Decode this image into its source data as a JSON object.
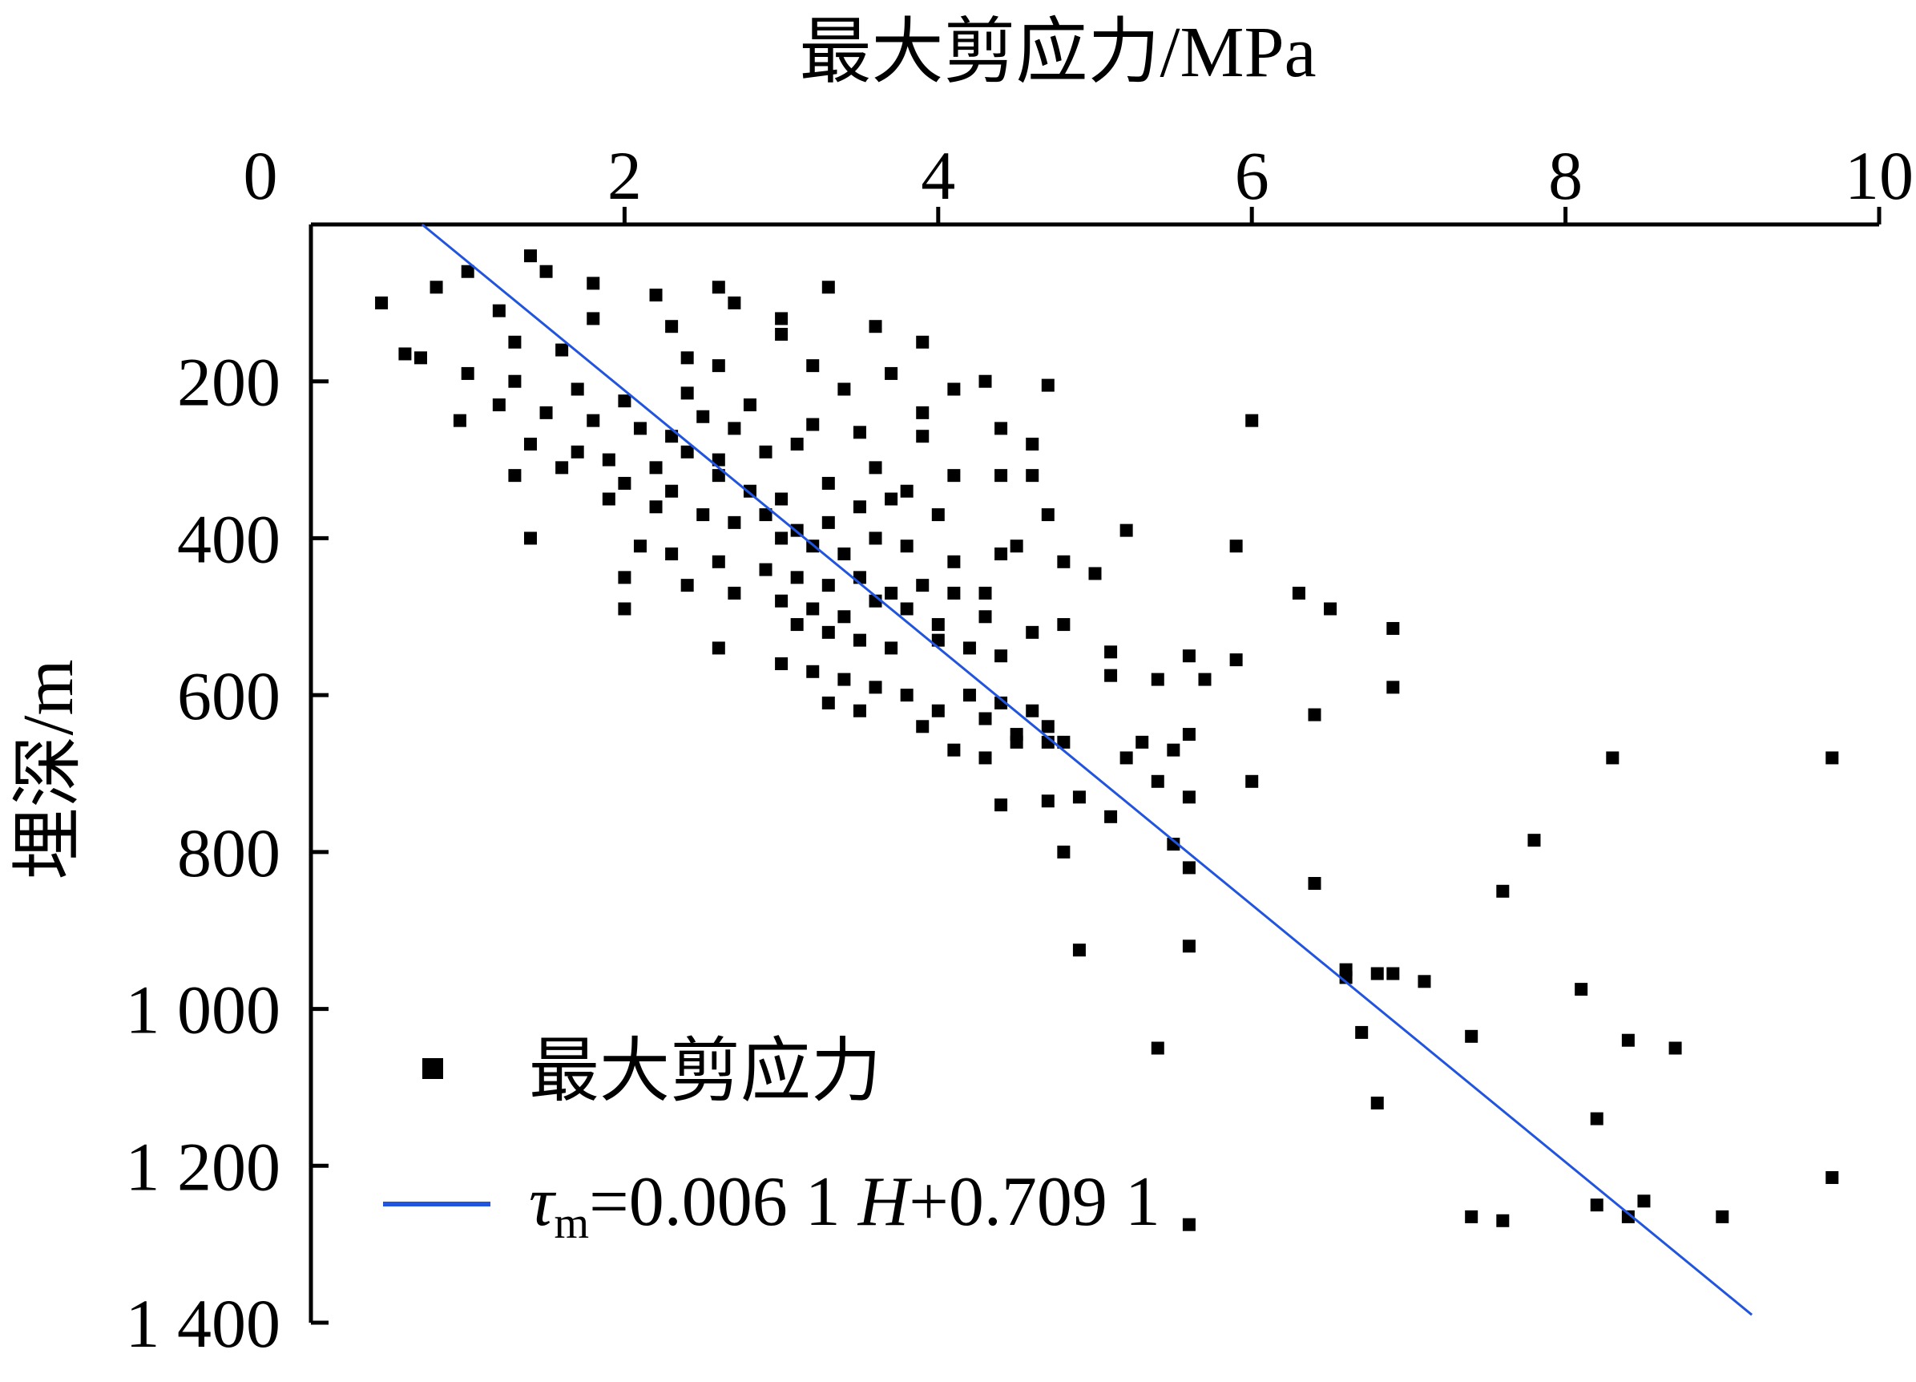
{
  "chart_data": {
    "type": "scatter",
    "title": "",
    "xlabel": "最大剪应力/MPa",
    "ylabel": "埋深/m",
    "xlim": [
      0,
      10
    ],
    "ylim": [
      0,
      1400
    ],
    "y_inverted": true,
    "x_axis_position": "top",
    "grid": false,
    "legend_position": "bottom-left",
    "x_ticks": [
      0,
      2,
      4,
      6,
      8,
      10
    ],
    "x_tick_labels": [
      "0",
      "2",
      "4",
      "6",
      "8",
      "10"
    ],
    "y_ticks": [
      200,
      400,
      600,
      800,
      1000,
      1200,
      1400
    ],
    "y_tick_labels": [
      "200",
      "400",
      "600",
      "800",
      "1 000",
      "1 200",
      "1 400"
    ],
    "series": [
      {
        "name": "最大剪应力",
        "kind": "scatter",
        "marker": "square",
        "color": "#000000",
        "points": [
          [
            1.4,
            40
          ],
          [
            1.5,
            60
          ],
          [
            1.0,
            60
          ],
          [
            0.8,
            80
          ],
          [
            1.8,
            75
          ],
          [
            3.3,
            80
          ],
          [
            2.6,
            80
          ],
          [
            2.2,
            90
          ],
          [
            0.45,
            100
          ],
          [
            2.7,
            100
          ],
          [
            1.2,
            110
          ],
          [
            1.8,
            120
          ],
          [
            3.0,
            120
          ],
          [
            2.3,
            130
          ],
          [
            3.6,
            130
          ],
          [
            3.0,
            140
          ],
          [
            3.9,
            150
          ],
          [
            1.3,
            150
          ],
          [
            1.6,
            160
          ],
          [
            0.6,
            165
          ],
          [
            0.7,
            170
          ],
          [
            2.4,
            170
          ],
          [
            3.2,
            180
          ],
          [
            2.6,
            180
          ],
          [
            3.7,
            190
          ],
          [
            4.3,
            200
          ],
          [
            1.0,
            190
          ],
          [
            1.3,
            200
          ],
          [
            1.7,
            210
          ],
          [
            2.4,
            215
          ],
          [
            2.0,
            225
          ],
          [
            4.7,
            205
          ],
          [
            4.1,
            210
          ],
          [
            3.9,
            240
          ],
          [
            2.8,
            230
          ],
          [
            3.4,
            210
          ],
          [
            1.2,
            230
          ],
          [
            1.5,
            240
          ],
          [
            1.8,
            250
          ],
          [
            2.1,
            260
          ],
          [
            2.3,
            270
          ],
          [
            2.5,
            245
          ],
          [
            2.7,
            260
          ],
          [
            0.95,
            250
          ],
          [
            1.4,
            280
          ],
          [
            1.7,
            290
          ],
          [
            1.9,
            300
          ],
          [
            2.2,
            310
          ],
          [
            2.4,
            290
          ],
          [
            2.6,
            300
          ],
          [
            3.2,
            255
          ],
          [
            3.5,
            265
          ],
          [
            3.9,
            270
          ],
          [
            4.4,
            260
          ],
          [
            4.6,
            280
          ],
          [
            6.0,
            250
          ],
          [
            3.1,
            280
          ],
          [
            2.9,
            290
          ],
          [
            1.3,
            320
          ],
          [
            1.6,
            310
          ],
          [
            2.0,
            330
          ],
          [
            2.3,
            340
          ],
          [
            2.6,
            320
          ],
          [
            2.8,
            340
          ],
          [
            3.0,
            350
          ],
          [
            3.3,
            330
          ],
          [
            3.6,
            310
          ],
          [
            4.1,
            320
          ],
          [
            4.4,
            320
          ],
          [
            4.6,
            320
          ],
          [
            3.8,
            340
          ],
          [
            1.9,
            350
          ],
          [
            2.2,
            360
          ],
          [
            2.5,
            370
          ],
          [
            2.7,
            380
          ],
          [
            2.9,
            370
          ],
          [
            3.1,
            390
          ],
          [
            3.3,
            380
          ],
          [
            3.5,
            360
          ],
          [
            3.7,
            350
          ],
          [
            4.0,
            370
          ],
          [
            4.7,
            370
          ],
          [
            3.0,
            400
          ],
          [
            3.2,
            410
          ],
          [
            3.4,
            420
          ],
          [
            3.6,
            400
          ],
          [
            3.8,
            410
          ],
          [
            4.1,
            430
          ],
          [
            4.4,
            420
          ],
          [
            4.5,
            410
          ],
          [
            5.2,
            390
          ],
          [
            5.9,
            410
          ],
          [
            1.4,
            400
          ],
          [
            2.1,
            410
          ],
          [
            2.3,
            420
          ],
          [
            2.6,
            430
          ],
          [
            2.9,
            440
          ],
          [
            3.1,
            450
          ],
          [
            3.3,
            460
          ],
          [
            3.5,
            450
          ],
          [
            3.7,
            470
          ],
          [
            3.9,
            460
          ],
          [
            4.1,
            470
          ],
          [
            4.3,
            470
          ],
          [
            4.8,
            430
          ],
          [
            5.0,
            445
          ],
          [
            2.0,
            450
          ],
          [
            2.4,
            460
          ],
          [
            2.7,
            470
          ],
          [
            3.0,
            480
          ],
          [
            3.2,
            490
          ],
          [
            3.4,
            500
          ],
          [
            3.6,
            480
          ],
          [
            3.8,
            490
          ],
          [
            4.0,
            510
          ],
          [
            4.3,
            500
          ],
          [
            4.6,
            520
          ],
          [
            4.8,
            510
          ],
          [
            6.3,
            470
          ],
          [
            6.5,
            490
          ],
          [
            6.9,
            515
          ],
          [
            2.0,
            490
          ],
          [
            3.1,
            510
          ],
          [
            3.3,
            520
          ],
          [
            3.5,
            530
          ],
          [
            3.7,
            540
          ],
          [
            4.0,
            530
          ],
          [
            4.2,
            540
          ],
          [
            4.4,
            550
          ],
          [
            5.1,
            545
          ],
          [
            5.6,
            550
          ],
          [
            5.9,
            555
          ],
          [
            5.4,
            580
          ],
          [
            2.6,
            540
          ],
          [
            3.0,
            560
          ],
          [
            3.2,
            570
          ],
          [
            3.4,
            580
          ],
          [
            3.6,
            590
          ],
          [
            3.8,
            600
          ],
          [
            4.0,
            620
          ],
          [
            4.2,
            600
          ],
          [
            4.4,
            610
          ],
          [
            4.6,
            620
          ],
          [
            5.1,
            575
          ],
          [
            5.7,
            580
          ],
          [
            6.9,
            590
          ],
          [
            6.4,
            625
          ],
          [
            3.3,
            610
          ],
          [
            3.5,
            620
          ],
          [
            3.9,
            640
          ],
          [
            4.3,
            630
          ],
          [
            4.5,
            650
          ],
          [
            4.7,
            640
          ],
          [
            4.8,
            660
          ],
          [
            5.3,
            660
          ],
          [
            5.5,
            670
          ],
          [
            5.6,
            650
          ],
          [
            5.2,
            680
          ],
          [
            4.1,
            670
          ],
          [
            4.3,
            680
          ],
          [
            4.5,
            660
          ],
          [
            4.7,
            660
          ],
          [
            5.4,
            710
          ],
          [
            5.6,
            730
          ],
          [
            6.0,
            710
          ],
          [
            4.4,
            740
          ],
          [
            4.7,
            735
          ],
          [
            4.9,
            730
          ],
          [
            5.1,
            755
          ],
          [
            8.3,
            680
          ],
          [
            9.7,
            680
          ],
          [
            5.5,
            790
          ],
          [
            5.6,
            820
          ],
          [
            4.8,
            800
          ],
          [
            7.8,
            785
          ],
          [
            6.4,
            840
          ],
          [
            7.6,
            850
          ],
          [
            4.9,
            925
          ],
          [
            5.6,
            920
          ],
          [
            6.6,
            950
          ],
          [
            6.6,
            960
          ],
          [
            6.8,
            955
          ],
          [
            6.9,
            955
          ],
          [
            7.1,
            965
          ],
          [
            8.1,
            975
          ],
          [
            6.7,
            1030
          ],
          [
            7.4,
            1035
          ],
          [
            8.4,
            1040
          ],
          [
            8.7,
            1050
          ],
          [
            5.4,
            1050
          ],
          [
            6.8,
            1120
          ],
          [
            8.2,
            1140
          ],
          [
            9.7,
            1215
          ],
          [
            8.2,
            1250
          ],
          [
            8.4,
            1265
          ],
          [
            8.5,
            1245
          ],
          [
            9.0,
            1265
          ],
          [
            7.4,
            1265
          ],
          [
            7.6,
            1270
          ],
          [
            5.6,
            1275
          ]
        ]
      },
      {
        "name": "τm=0.006 1 H+0.709 1",
        "kind": "line",
        "color": "#2255dd",
        "slope": 0.0061,
        "intercept": 0.7091,
        "depth_range": [
          0,
          1390
        ]
      }
    ],
    "legend": {
      "scatter_label": "最大剪应力",
      "line_label_symbol": "τ",
      "line_label_subscript": "m",
      "line_label_rest_a": "=0.006 1 ",
      "line_label_var": "H",
      "line_label_rest_b": "+0.709 1"
    }
  }
}
